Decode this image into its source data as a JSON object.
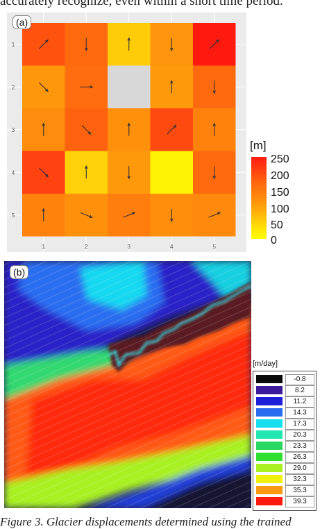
{
  "top_text": "accurately recognize, even within a short time period.",
  "caption": "Figure 3. Glacier displacements determined using the trained",
  "panel_a": {
    "label": "(a)",
    "legend_title": "[m]",
    "legend_ticks": [
      "250",
      "200",
      "150",
      "100",
      "50",
      "0"
    ]
  },
  "panel_b": {
    "label": "(b)",
    "legend_title": "[m/day]",
    "legend_items": [
      {
        "label": "-0.8",
        "color": "#0a0a0a"
      },
      {
        "label": "8.2",
        "color": "#3c1a9a"
      },
      {
        "label": "11.2",
        "color": "#2020d8"
      },
      {
        "label": "14.3",
        "color": "#2a6ef0"
      },
      {
        "label": "17.3",
        "color": "#14e0f0"
      },
      {
        "label": "20.3",
        "color": "#20e8b0"
      },
      {
        "label": "23.3",
        "color": "#28d860"
      },
      {
        "label": "26.3",
        "color": "#30e030"
      },
      {
        "label": "29.0",
        "color": "#a8f020"
      },
      {
        "label": "32.3",
        "color": "#f0f010"
      },
      {
        "label": "35.3",
        "color": "#ff9a10"
      },
      {
        "label": "39.3",
        "color": "#ff1a10"
      }
    ]
  },
  "chart_data": {
    "type": "heatmap",
    "x": [
      "1",
      "2",
      "3",
      "4",
      "5"
    ],
    "y": [
      "1",
      "2",
      "3",
      "4",
      "5"
    ],
    "values": [
      [
        215,
        200,
        60,
        130,
        250
      ],
      [
        125,
        195,
        null,
        120,
        200
      ],
      [
        150,
        205,
        140,
        220,
        165
      ],
      [
        225,
        55,
        120,
        15,
        200
      ],
      [
        165,
        140,
        170,
        145,
        155
      ]
    ],
    "arrows": [
      [
        "NE",
        "S",
        "N",
        "S",
        "NE"
      ],
      [
        "SE",
        "E",
        "",
        "N",
        "S"
      ],
      [
        "N",
        "SE",
        "N",
        "NE",
        "N"
      ],
      [
        "SE",
        "N",
        "S",
        "",
        "S"
      ],
      [
        "N",
        "ESE",
        "ENE",
        "S",
        "ENE"
      ]
    ],
    "legend_title": "[m]",
    "colorbar_range": [
      0,
      250
    ]
  }
}
